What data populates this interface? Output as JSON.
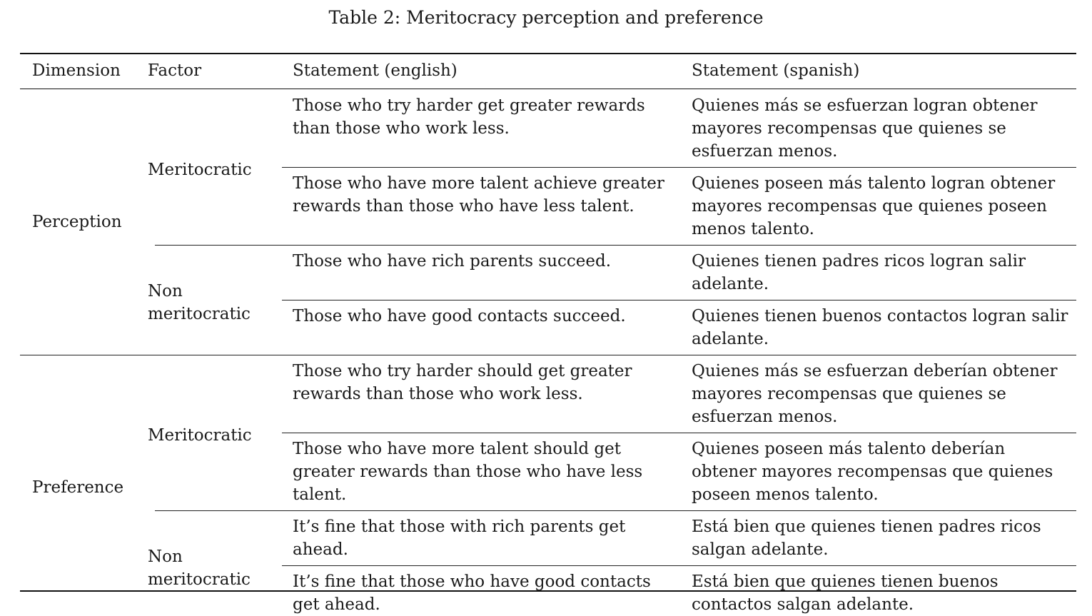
{
  "caption": "Table 2: Meritocracy perception and preference",
  "headers": {
    "dimension": "Dimension",
    "factor": "Factor",
    "statement_en": "Statement (english)",
    "statement_es": "Statement (spanish)"
  },
  "dimensions": [
    {
      "label": "Perception",
      "factors": [
        {
          "label": [
            "Meritocratic"
          ],
          "rows": [
            {
              "en": [
                "Those who try harder get greater rewards",
                "than those who work less."
              ],
              "es": [
                "Quienes más se esfuerzan logran obtener",
                "mayores recompensas que quienes se",
                "esfuerzan menos."
              ]
            },
            {
              "en": [
                "Those who have more talent achieve greater",
                "rewards than those who have less talent."
              ],
              "es": [
                "Quienes poseen más talento logran obtener",
                "mayores recompensas que quienes poseen",
                "menos talento."
              ]
            }
          ]
        },
        {
          "label": [
            "Non",
            "meritocratic"
          ],
          "rows": [
            {
              "en": [
                "Those who have rich parents succeed."
              ],
              "es": [
                "Quienes tienen padres ricos logran salir",
                "adelante."
              ]
            },
            {
              "en": [
                "Those who have good contacts succeed."
              ],
              "es": [
                "Quienes tienen buenos contactos logran salir",
                "adelante."
              ]
            }
          ]
        }
      ]
    },
    {
      "label": "Preference",
      "factors": [
        {
          "label": [
            "Meritocratic"
          ],
          "rows": [
            {
              "en": [
                "Those who try harder should get greater",
                "rewards than those who work less."
              ],
              "es": [
                "Quienes más se esfuerzan deberían obtener",
                "mayores recompensas que quienes se",
                "esfuerzan menos."
              ]
            },
            {
              "en": [
                "Those who have more talent should get",
                "greater rewards than those who have less",
                "talent."
              ],
              "es": [
                "Quienes poseen más talento deberían",
                "obtener mayores recompensas que quienes",
                "poseen menos talento."
              ]
            }
          ]
        },
        {
          "label": [
            "Non",
            "meritocratic"
          ],
          "rows": [
            {
              "en": [
                "It’s fine that those with rich parents get",
                "ahead."
              ],
              "es": [
                "Está bien que quienes tienen padres ricos",
                "salgan adelante."
              ]
            },
            {
              "en": [
                "It’s fine that those who have good contacts",
                "get ahead."
              ],
              "es": [
                "Está bien que quienes tienen buenos",
                "contactos salgan adelante."
              ]
            }
          ]
        }
      ]
    }
  ]
}
